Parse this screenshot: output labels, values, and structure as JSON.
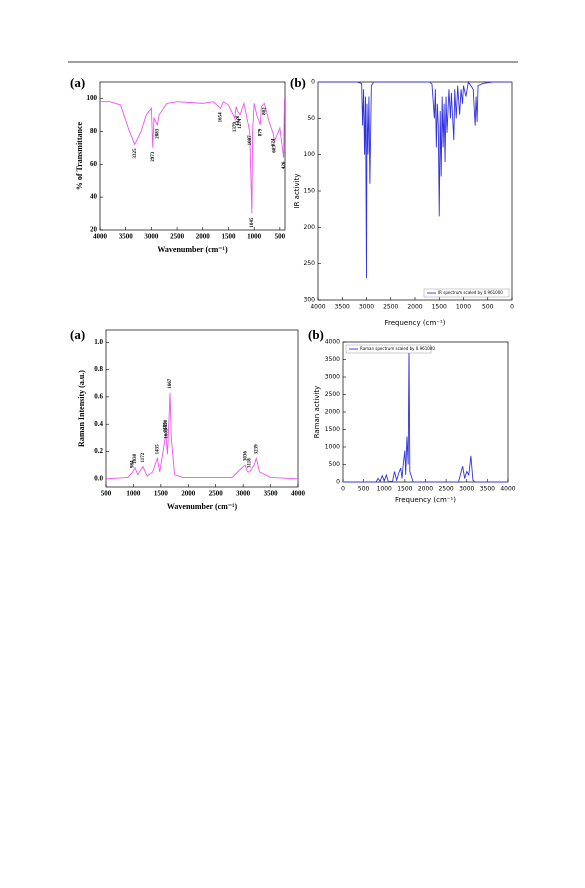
{
  "chart_data": [
    {
      "type": "line",
      "panel": "(a)",
      "x_label": "Wavenumber (cm⁻¹)",
      "y_label": "% of Transmittance",
      "xlim": [
        4000,
        400
      ],
      "xticks": [
        4000,
        3500,
        3000,
        2500,
        2000,
        1500,
        1000,
        500
      ],
      "ylim": [
        20,
        110
      ],
      "yticks": [
        20,
        40,
        60,
        80,
        100
      ],
      "x": [
        4000,
        3800,
        3600,
        3450,
        3325,
        3200,
        3100,
        3000,
        2973,
        2950,
        2883,
        2850,
        2700,
        2500,
        2000,
        1800,
        1654,
        1600,
        1500,
        1379,
        1350,
        1320,
        1274,
        1200,
        1087,
        1045,
        1030,
        1000,
        950,
        879,
        860,
        802,
        700,
        624,
        605,
        500,
        426,
        410
      ],
      "series": [
        {
          "color": "#ee55ee",
          "values": [
            98,
            98,
            96,
            82,
            72,
            80,
            90,
            94,
            70,
            88,
            84,
            90,
            97,
            98,
            97,
            98,
            94,
            98,
            96,
            88,
            95,
            92,
            90,
            97,
            80,
            30,
            80,
            97,
            90,
            84,
            95,
            97,
            85,
            78,
            74,
            82,
            64,
            100
          ]
        }
      ],
      "annotations": [
        {
          "x": 3325,
          "text": "3325"
        },
        {
          "x": 2973,
          "text": "2973"
        },
        {
          "x": 2883,
          "text": "2883"
        },
        {
          "x": 1654,
          "text": "1654"
        },
        {
          "x": 1379,
          "text": "1379"
        },
        {
          "x": 1320,
          "text": "1320"
        },
        {
          "x": 1274,
          "text": "1274"
        },
        {
          "x": 1087,
          "text": "1087"
        },
        {
          "x": 1045,
          "text": "1045"
        },
        {
          "x": 879,
          "text": "879"
        },
        {
          "x": 802,
          "text": "802"
        },
        {
          "x": 624,
          "text": "624"
        },
        {
          "x": 605,
          "text": "605"
        },
        {
          "x": 426,
          "text": "426"
        }
      ]
    },
    {
      "type": "line",
      "panel": "(b)",
      "x_label": "Frequency (cm⁻¹)",
      "y_label": "IR activity",
      "xlim": [
        4000,
        0
      ],
      "xticks": [
        4000,
        3500,
        3000,
        2500,
        2000,
        1500,
        1000,
        500,
        0
      ],
      "ylim": [
        300,
        0
      ],
      "yticks": [
        0,
        50,
        100,
        150,
        200,
        250,
        300
      ],
      "legend": "lower right",
      "x": [
        4000,
        3200,
        3100,
        3080,
        3060,
        3040,
        3020,
        3000,
        2990,
        2970,
        2950,
        2930,
        2900,
        2850,
        1700,
        1650,
        1600,
        1580,
        1560,
        1540,
        1520,
        1500,
        1480,
        1460,
        1440,
        1420,
        1400,
        1380,
        1360,
        1340,
        1300,
        1270,
        1250,
        1200,
        1180,
        1150,
        1120,
        1080,
        1050,
        1020,
        1000,
        950,
        900,
        800,
        760,
        740,
        720,
        700,
        600,
        400,
        0
      ],
      "series": [
        {
          "name": "IR spectrum scaled by 0.961000",
          "color": "#3333dd",
          "values": [
            0,
            0,
            2,
            60,
            10,
            100,
            20,
            270,
            30,
            100,
            20,
            140,
            5,
            0,
            0,
            3,
            50,
            10,
            90,
            30,
            60,
            185,
            40,
            130,
            20,
            90,
            30,
            110,
            20,
            70,
            10,
            50,
            15,
            80,
            10,
            50,
            5,
            45,
            10,
            30,
            5,
            20,
            0,
            10,
            60,
            20,
            55,
            5,
            2,
            0,
            0
          ]
        }
      ]
    },
    {
      "type": "line",
      "panel": "(a)",
      "x_label": "Wavenumber (cm⁻¹)",
      "y_label": "Raman Intensity (a.u.)",
      "xlim": [
        500,
        4000
      ],
      "xticks": [
        500,
        1000,
        1500,
        2000,
        2500,
        3000,
        3500,
        4000
      ],
      "ylim": [
        -0.06,
        1.09
      ],
      "yticks": [
        {
          "value": 0,
          "label": "0.0"
        },
        0.2,
        0.4,
        0.6,
        0.8,
        {
          "value": 1,
          "label": "1.0"
        }
      ],
      "x": [
        500,
        900,
        984,
        1030,
        1080,
        1172,
        1250,
        1350,
        1435,
        1480,
        1560,
        1590,
        1620,
        1650,
        1667,
        1690,
        1750,
        1900,
        2800,
        2950,
        3036,
        3080,
        3118,
        3200,
        3239,
        3300,
        3500,
        4000
      ],
      "series": [
        {
          "color": "#ee55ee",
          "values": [
            0,
            0.01,
            0.05,
            0.08,
            0.03,
            0.09,
            0.02,
            0.05,
            0.15,
            0.05,
            0.25,
            0.33,
            0.18,
            0.45,
            0.63,
            0.3,
            0.03,
            0.01,
            0.01,
            0.07,
            0.1,
            0.05,
            0.05,
            0.1,
            0.15,
            0.05,
            0.01,
            0
          ]
        }
      ],
      "annotations": [
        {
          "x": 984,
          "text": "984"
        },
        {
          "x": 1030,
          "text": "1030"
        },
        {
          "x": 1172,
          "text": "1172"
        },
        {
          "x": 1435,
          "text": "1435"
        },
        {
          "x": 1583,
          "text": "1583"
        },
        {
          "x": 1590,
          "text": "1590"
        },
        {
          "x": 1603,
          "text": "1603"
        },
        {
          "x": 1667,
          "text": "1667"
        },
        {
          "x": 3036,
          "text": "3036"
        },
        {
          "x": 3118,
          "text": "3118"
        },
        {
          "x": 3239,
          "text": "3239"
        }
      ]
    },
    {
      "type": "line",
      "panel": "(b)",
      "x_label": "Frequency (cm⁻¹)",
      "y_label": "Raman activity",
      "xlim": [
        0,
        4000
      ],
      "xticks": [
        0,
        500,
        1000,
        1500,
        2000,
        2500,
        3000,
        3500,
        4000
      ],
      "ylim": [
        0,
        4000
      ],
      "yticks": [
        0,
        500,
        1000,
        1500,
        2000,
        2500,
        3000,
        3500,
        4000
      ],
      "legend": "upper left",
      "x": [
        0,
        800,
        850,
        900,
        950,
        1000,
        1050,
        1100,
        1200,
        1250,
        1300,
        1350,
        1400,
        1430,
        1460,
        1500,
        1520,
        1550,
        1580,
        1600,
        1620,
        1700,
        2800,
        2900,
        2950,
        3000,
        3050,
        3100,
        3150,
        3200,
        4000
      ],
      "series": [
        {
          "name": "Raman spectrum scaled by 0.961000",
          "color": "#3333dd",
          "values": [
            0,
            0,
            100,
            20,
            180,
            30,
            200,
            10,
            20,
            300,
            50,
            250,
            400,
            100,
            500,
            900,
            200,
            1300,
            500,
            3850,
            300,
            0,
            0,
            450,
            100,
            300,
            200,
            750,
            50,
            0,
            0
          ]
        }
      ]
    }
  ]
}
